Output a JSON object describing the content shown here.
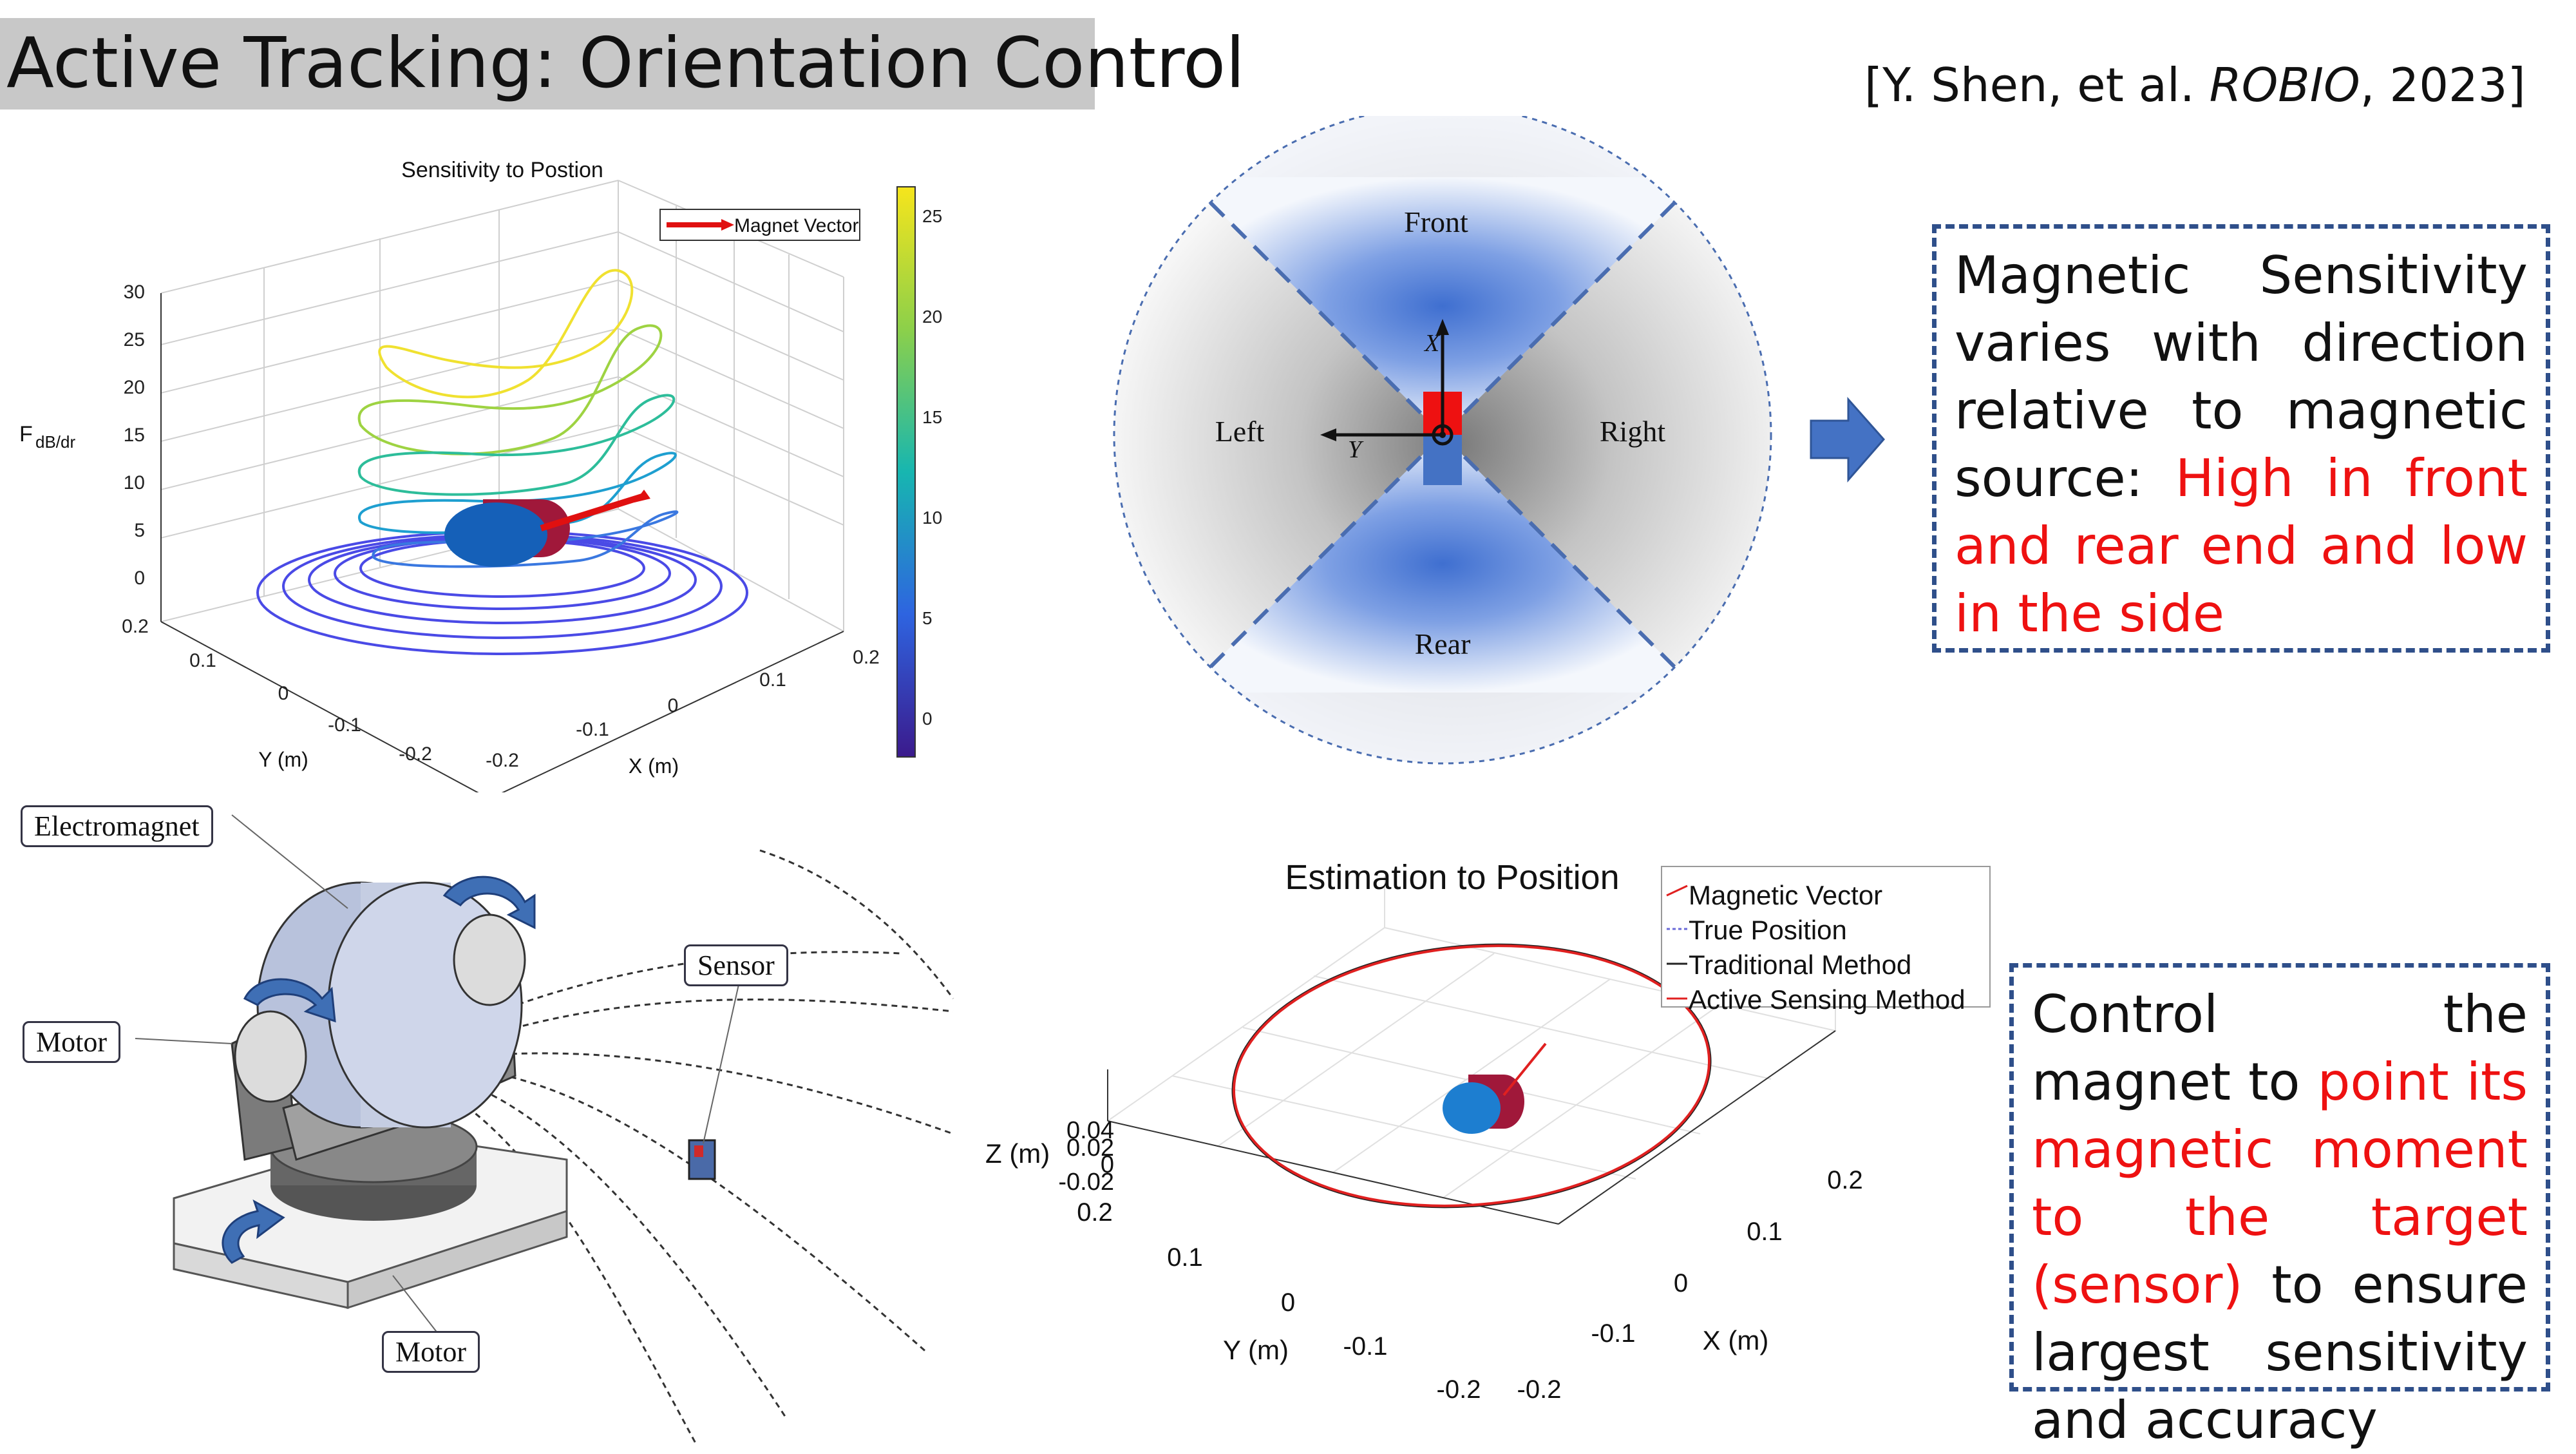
{
  "slide": {
    "title": "Active Tracking: Orientation Control",
    "citation": {
      "prefix": "[Y. Shen, et al. ",
      "venue": "ROBIO",
      "suffix": ", 2023]"
    }
  },
  "box1": {
    "text_black": "Magnetic Sensitivity varies with direction relative to magnetic source: ",
    "text_red": "High in front and rear end and low in the side"
  },
  "box2": {
    "text_a": "Control the magnet to ",
    "text_red": "point its magnetic moment to the target (sensor)",
    "text_b": " to ensure largest sensitivity and accuracy"
  },
  "plot_sensitivity": {
    "title": "Sensitivity to Postion",
    "zlabel": "F",
    "zlabel_sub": "dB/dr",
    "xlabel": "X (m)",
    "ylabel": "Y (m)",
    "legend": "Magnet Vector",
    "z_ticks": [
      "30",
      "25",
      "20",
      "15",
      "10",
      "5",
      "0"
    ],
    "y_ticks": [
      "0.2",
      "0.1",
      "0",
      "-0.1",
      "-0.2"
    ],
    "x_ticks": [
      "-0.2",
      "-0.1",
      "0",
      "0.1",
      "0.2"
    ],
    "colorbar_ticks": [
      "25",
      "20",
      "15",
      "10",
      "5",
      "0"
    ]
  },
  "diagram_sectors": {
    "front": "Front",
    "rear": "Rear",
    "left": "Left",
    "right": "Right",
    "axis_x": "X",
    "axis_y": "Y"
  },
  "device": {
    "electromagnet": "Electromagnet",
    "motor_left": "Motor",
    "motor_bottom": "Motor",
    "sensor": "Sensor"
  },
  "plot_estimation": {
    "title": "Estimation to Position",
    "legend": [
      "Magnetic Vector",
      "True Position",
      "Traditional Method",
      "Active Sensing Method"
    ],
    "legend_colors": [
      "#e02020",
      "#6a6ad8",
      "#222222",
      "#e02020"
    ],
    "zlabel": "Z (m)",
    "z_ticks": [
      "0.04",
      "0.02",
      "0",
      "-0.02"
    ],
    "ylabel": "Y (m)",
    "y_ticks": [
      "0.2",
      "0.1",
      "0",
      "-0.1",
      "-0.2"
    ],
    "xlabel": "X (m)",
    "x_ticks": [
      "0.2",
      "0.1",
      "0",
      "-0.1",
      "-0.2"
    ]
  },
  "colors": {
    "accent_blue": "#4472c4",
    "box_border": "#2f4f8a",
    "highlight_red": "#ee1111"
  }
}
